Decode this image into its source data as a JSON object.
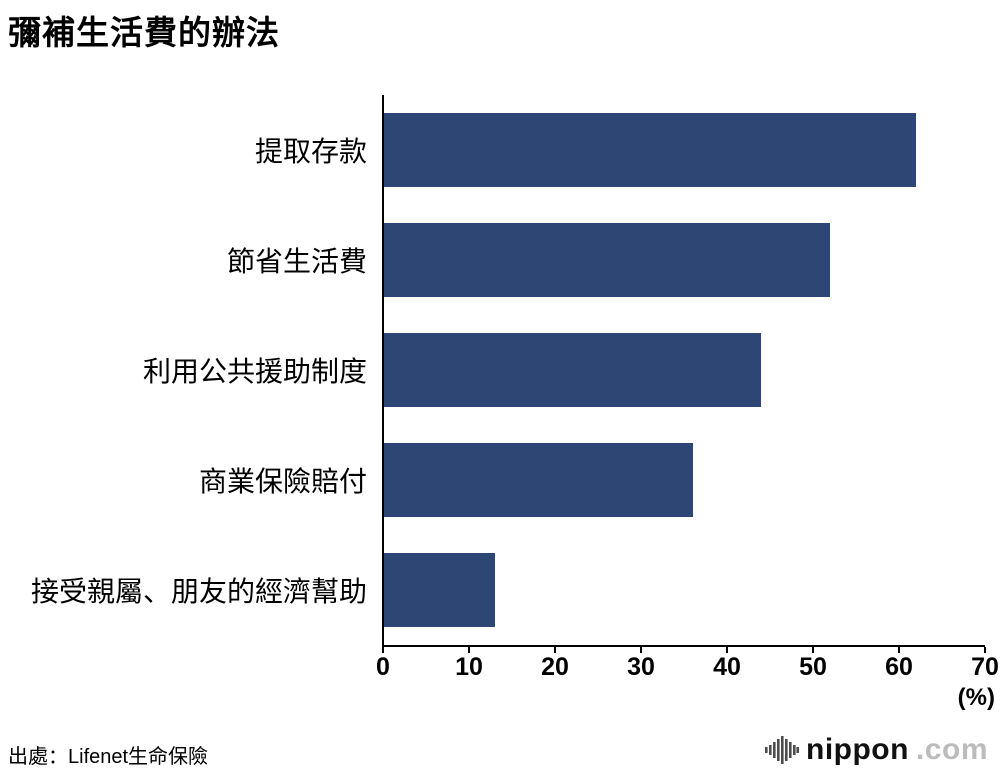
{
  "title": "彌補生活費的辦法",
  "source": "出處：Lifenet生命保險",
  "logo": {
    "icon": "soundwave-bars-icon",
    "text": "nippon",
    "suffix": ".com"
  },
  "chart_data": {
    "type": "bar",
    "orientation": "horizontal",
    "title": "彌補生活費的辦法",
    "categories": [
      "提取存款",
      "節省生活費",
      "利用公共援助制度",
      "商業保險賠付",
      "接受親屬、朋友的經濟幫助"
    ],
    "values": [
      62,
      52,
      44,
      36,
      13
    ],
    "xlim": [
      0,
      70
    ],
    "xticks": [
      0,
      10,
      20,
      30,
      40,
      50,
      60,
      70
    ],
    "x_unit": "(%)",
    "bar_color": "#2d4674",
    "axis_color": "#000000",
    "grid": false,
    "legend": false
  }
}
